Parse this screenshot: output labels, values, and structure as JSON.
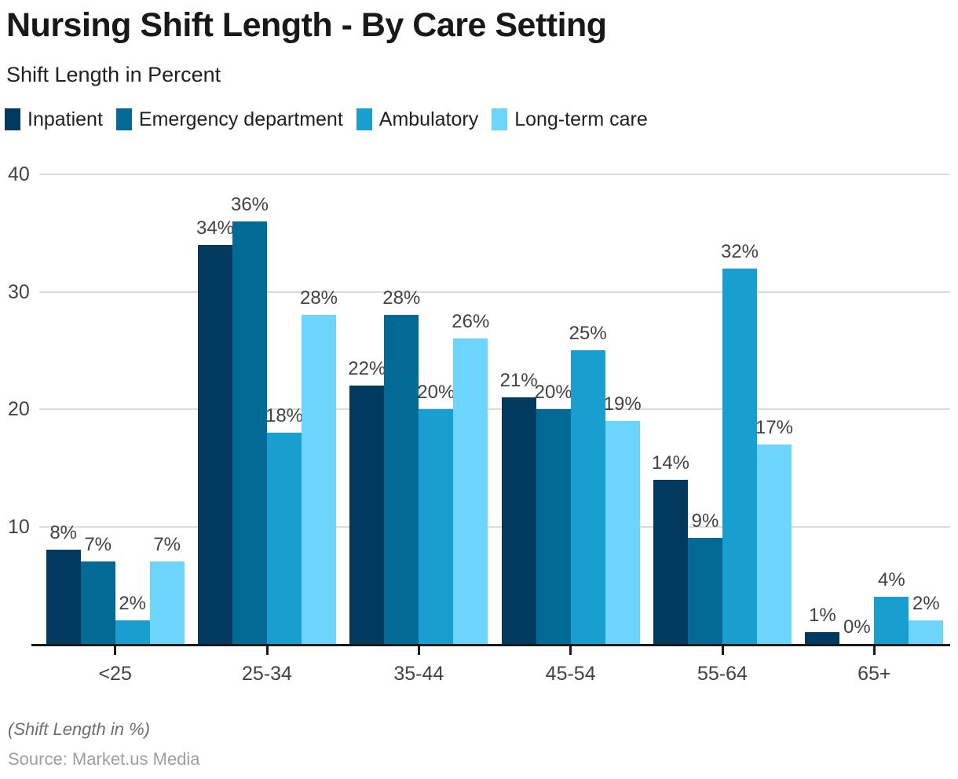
{
  "title": "Nursing Shift Length - By Care Setting",
  "subtitle": "Shift Length in Percent",
  "footer": {
    "note": "(Shift Length in %)",
    "source": "Source: Market.us Media"
  },
  "colors": {
    "inpatient": "#013a5e",
    "emergency_department": "#036a96",
    "ambulatory": "#189fd0",
    "long_term_care": "#6dd5fb",
    "gridline": "#dbdbdb",
    "axis": "#1a1a1a",
    "axis_text": "#424242"
  },
  "chart_data": {
    "type": "bar",
    "title": "Nursing Shift Length - By Care Setting",
    "subtitle": "Shift Length in Percent",
    "xlabel": "",
    "ylabel": "Shift Length in Percent",
    "categories": [
      "<25",
      "25-34",
      "35-44",
      "45-54",
      "55-64",
      "65+"
    ],
    "series": [
      {
        "name": "Inpatient",
        "color": "#013a5e",
        "values": [
          8,
          34,
          22,
          21,
          14,
          1
        ]
      },
      {
        "name": "Emergency department",
        "color": "#036a96",
        "values": [
          7,
          36,
          28,
          20,
          9,
          0
        ]
      },
      {
        "name": "Ambulatory",
        "color": "#189fd0",
        "values": [
          2,
          18,
          20,
          25,
          32,
          4
        ]
      },
      {
        "name": "Long-term care",
        "color": "#6dd5fb",
        "values": [
          7,
          28,
          26,
          19,
          17,
          2
        ]
      }
    ],
    "value_label_format": "{v}%",
    "ylim": [
      0,
      40
    ],
    "yticks": [
      10,
      20,
      30,
      40
    ],
    "grid": true,
    "legend_position": "top"
  }
}
